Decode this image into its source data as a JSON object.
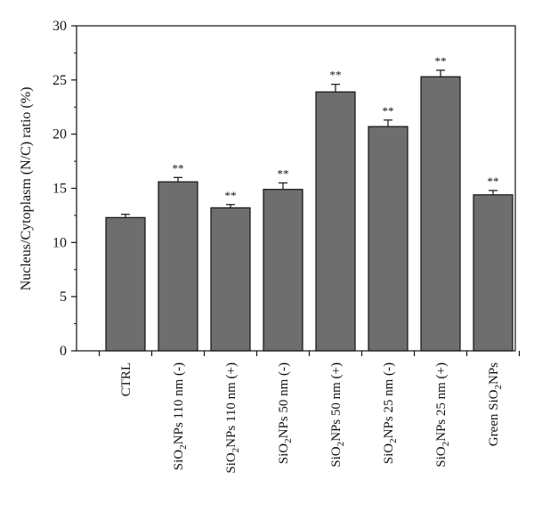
{
  "chart_data": {
    "type": "bar",
    "categories": [
      {
        "base": "CTRL",
        "sub": "",
        "tail": ""
      },
      {
        "base": "SiO",
        "sub": "2",
        "tail": "NPs 110 nm (-)"
      },
      {
        "base": "SiO",
        "sub": "2",
        "tail": "NPs 110 nm (+)"
      },
      {
        "base": "SiO",
        "sub": "2",
        "tail": "NPs 50 nm (-)"
      },
      {
        "base": "SiO",
        "sub": "2",
        "tail": "NPs 50 nm (+)"
      },
      {
        "base": "SiO",
        "sub": "2",
        "tail": "NPs 25 nm (-)"
      },
      {
        "base": "SiO",
        "sub": "2",
        "tail": "NPs 25 nm (+)"
      },
      {
        "base": "Green SiO",
        "sub": "2",
        "tail": "NPs"
      }
    ],
    "values": [
      12.3,
      15.6,
      13.2,
      14.9,
      23.9,
      20.7,
      25.3,
      14.4
    ],
    "errors": [
      0.3,
      0.4,
      0.3,
      0.6,
      0.7,
      0.6,
      0.6,
      0.4
    ],
    "significance": [
      "",
      "**",
      "**",
      "**",
      "**",
      "**",
      "**",
      "**"
    ],
    "ylabel": "Nucleus/Cytoplasm (N/C) ratio (%)",
    "ylim": [
      0,
      30
    ],
    "yticks": [
      0,
      5,
      10,
      15,
      20,
      25,
      30
    ],
    "bar_color": "#6e6e6e",
    "edge_color": "#111111",
    "grid": false,
    "legend": "none"
  }
}
